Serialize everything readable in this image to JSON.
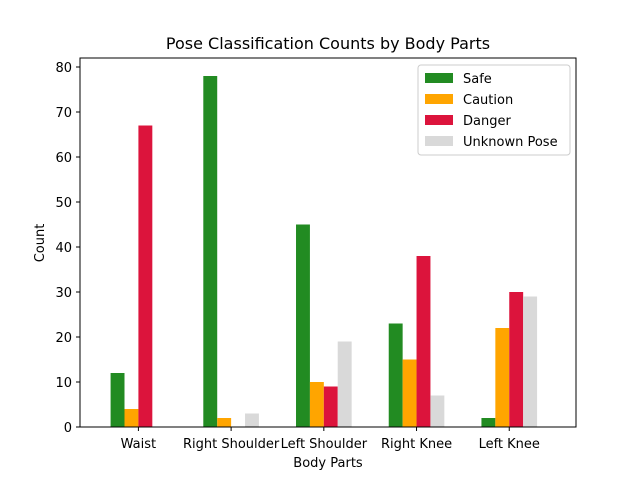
{
  "chart_data": {
    "type": "bar",
    "title": "Pose Classification Counts by Body Parts",
    "xlabel": "Body Parts",
    "ylabel": "Count",
    "ylim": [
      0,
      82
    ],
    "yticks": [
      0,
      10,
      20,
      30,
      40,
      50,
      60,
      70,
      80
    ],
    "grid": false,
    "legend_position": "top-right",
    "categories": [
      "Waist",
      "Right Shoulder",
      "Left Shoulder",
      "Right Knee",
      "Left Knee"
    ],
    "series": [
      {
        "name": "Safe",
        "color": "#228b22",
        "values": [
          12,
          78,
          45,
          23,
          2
        ]
      },
      {
        "name": "Caution",
        "color": "#ffa500",
        "values": [
          4,
          2,
          10,
          15,
          22
        ]
      },
      {
        "name": "Danger",
        "color": "#dc143c",
        "values": [
          67,
          0,
          9,
          38,
          30
        ]
      },
      {
        "name": "Unknown Pose",
        "color": "#d9d9d9",
        "values": [
          0,
          3,
          19,
          7,
          29
        ]
      }
    ]
  }
}
